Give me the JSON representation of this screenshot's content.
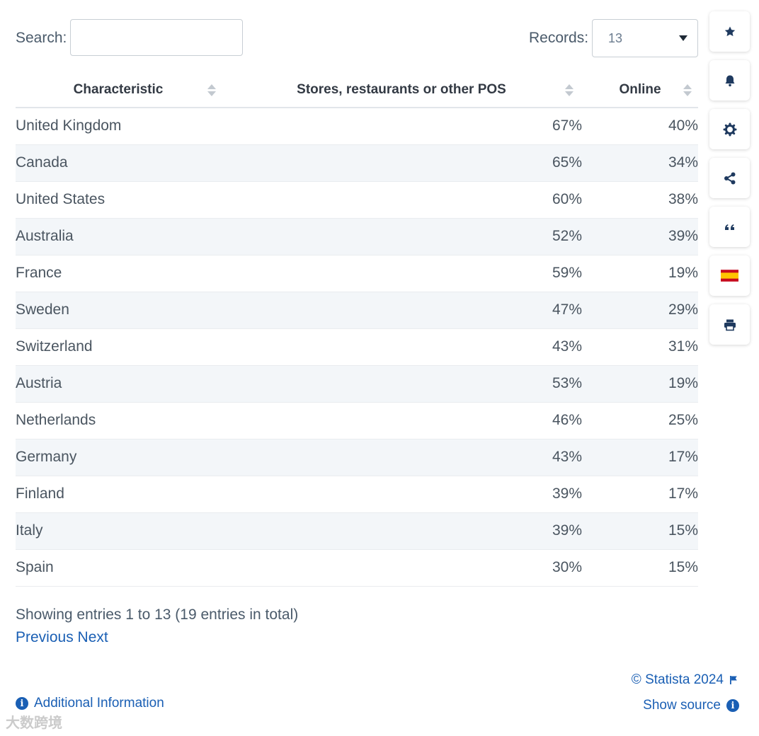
{
  "search": {
    "label": "Search:",
    "value": "",
    "placeholder": ""
  },
  "records": {
    "label": "Records:",
    "value": "13"
  },
  "table": {
    "headers": [
      "Characteristic",
      "Stores, restaurants or other POS",
      "Online"
    ],
    "rows": [
      [
        "United Kingdom",
        "67%",
        "40%"
      ],
      [
        "Canada",
        "65%",
        "34%"
      ],
      [
        "United States",
        "60%",
        "38%"
      ],
      [
        "Australia",
        "52%",
        "39%"
      ],
      [
        "France",
        "59%",
        "19%"
      ],
      [
        "Sweden",
        "47%",
        "29%"
      ],
      [
        "Switzerland",
        "43%",
        "31%"
      ],
      [
        "Austria",
        "53%",
        "19%"
      ],
      [
        "Netherlands",
        "46%",
        "25%"
      ],
      [
        "Germany",
        "43%",
        "17%"
      ],
      [
        "Finland",
        "39%",
        "17%"
      ],
      [
        "Italy",
        "39%",
        "15%"
      ],
      [
        "Spain",
        "30%",
        "15%"
      ]
    ]
  },
  "footer": {
    "showing": "Showing entries 1 to 13 (19 entries in total)",
    "previous": "Previous",
    "next": "Next",
    "copyright": "© Statista 2024",
    "show_source": "Show source",
    "additional_info": "Additional Information"
  },
  "sidebar": [
    "star-icon",
    "bell-icon",
    "gear-icon",
    "share-icon",
    "quote-icon",
    "spain-flag-icon",
    "print-icon"
  ],
  "watermark": "大数跨境",
  "colors": {
    "link": "#1a5fb4",
    "icon": "#1f3a5f",
    "stripe": "#f3f6f9"
  }
}
